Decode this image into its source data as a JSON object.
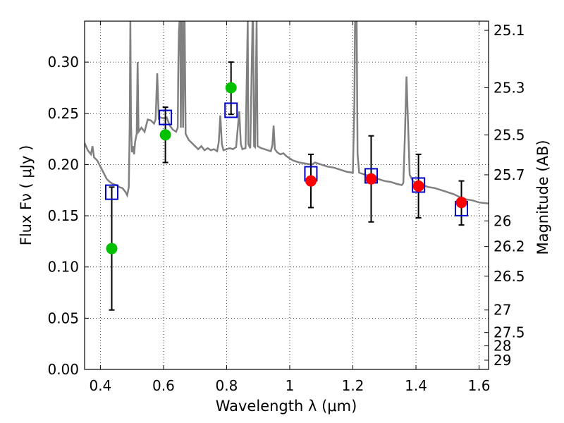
{
  "chart_data": {
    "type": "scatter",
    "title": "",
    "xlabel": "Wavelength  λ (μm)",
    "ylabel": "Flux  Fν  ( μJy )",
    "y2label": "Magnitude (AB)",
    "xlim": [
      0.35,
      1.63
    ],
    "ylim": [
      0.0,
      0.34
    ],
    "xticks": [
      0.4,
      0.6,
      0.8,
      1.0,
      1.2,
      1.4,
      1.6
    ],
    "xtick_labels": [
      "0.4",
      "0.6",
      "0.8",
      "1",
      "1.2",
      "1.4",
      "1.6"
    ],
    "yticks": [
      0.0,
      0.05,
      0.1,
      0.15,
      0.2,
      0.25,
      0.3
    ],
    "ytick_labels": [
      "0.00",
      "0.05",
      "0.10",
      "0.15",
      "0.20",
      "0.25",
      "0.30"
    ],
    "y2ticks": [
      {
        "label": "25.1",
        "flux": 0.331
      },
      {
        "label": "25.3",
        "flux": 0.275
      },
      {
        "label": "25.5",
        "flux": 0.229
      },
      {
        "label": "25.7",
        "flux": 0.19
      },
      {
        "label": "26",
        "flux": 0.145
      },
      {
        "label": "26.2",
        "flux": 0.12
      },
      {
        "label": "26.5",
        "flux": 0.091
      },
      {
        "label": "27",
        "flux": 0.058
      },
      {
        "label": "27.5",
        "flux": 0.036
      },
      {
        "label": "28",
        "flux": 0.023
      },
      {
        "label": "29",
        "flux": 0.009
      }
    ],
    "grid": true,
    "colors": {
      "model": "#808080",
      "observed_optical": "#00c000",
      "observed_nir": "#ff0000",
      "model_photometry": "#0000cc",
      "errorbar": "#000000"
    },
    "series": [
      {
        "kind": "line",
        "points": [
          [
            0.35,
            0.221
          ],
          [
            0.36,
            0.214
          ],
          [
            0.37,
            0.21
          ],
          [
            0.375,
            0.218
          ],
          [
            0.38,
            0.207
          ],
          [
            0.39,
            0.204
          ],
          [
            0.4,
            0.198
          ],
          [
            0.41,
            0.192
          ],
          [
            0.42,
            0.186
          ],
          [
            0.43,
            0.183
          ],
          [
            0.44,
            0.181
          ],
          [
            0.45,
            0.18
          ],
          [
            0.46,
            0.178
          ],
          [
            0.47,
            0.177
          ],
          [
            0.48,
            0.173
          ],
          [
            0.485,
            0.17
          ],
          [
            0.49,
            0.178
          ],
          [
            0.493,
            0.24
          ],
          [
            0.495,
            0.34
          ],
          [
            0.497,
            0.24
          ],
          [
            0.5,
            0.212
          ],
          [
            0.503,
            0.218
          ],
          [
            0.507,
            0.21
          ],
          [
            0.51,
            0.222
          ],
          [
            0.515,
            0.23
          ],
          [
            0.518,
            0.3
          ],
          [
            0.521,
            0.232
          ],
          [
            0.53,
            0.236
          ],
          [
            0.54,
            0.232
          ],
          [
            0.55,
            0.244
          ],
          [
            0.56,
            0.243
          ],
          [
            0.57,
            0.24
          ],
          [
            0.575,
            0.244
          ],
          [
            0.58,
            0.289
          ],
          [
            0.585,
            0.245
          ],
          [
            0.59,
            0.246
          ],
          [
            0.6,
            0.245
          ],
          [
            0.61,
            0.246
          ],
          [
            0.62,
            0.238
          ],
          [
            0.63,
            0.234
          ],
          [
            0.64,
            0.232
          ],
          [
            0.645,
            0.236
          ],
          [
            0.647,
            0.3
          ],
          [
            0.649,
            0.33
          ],
          [
            0.651,
            0.34
          ],
          [
            0.653,
            0.34
          ],
          [
            0.655,
            0.236
          ],
          [
            0.657,
            0.34
          ],
          [
            0.659,
            0.34
          ],
          [
            0.662,
            0.236
          ],
          [
            0.665,
            0.34
          ],
          [
            0.667,
            0.34
          ],
          [
            0.67,
            0.23
          ],
          [
            0.68,
            0.224
          ],
          [
            0.69,
            0.221
          ],
          [
            0.7,
            0.218
          ],
          [
            0.71,
            0.215
          ],
          [
            0.72,
            0.218
          ],
          [
            0.73,
            0.214
          ],
          [
            0.74,
            0.216
          ],
          [
            0.75,
            0.214
          ],
          [
            0.76,
            0.215
          ],
          [
            0.77,
            0.213
          ],
          [
            0.775,
            0.222
          ],
          [
            0.78,
            0.248
          ],
          [
            0.785,
            0.22
          ],
          [
            0.79,
            0.214
          ],
          [
            0.8,
            0.215
          ],
          [
            0.81,
            0.216
          ],
          [
            0.82,
            0.215
          ],
          [
            0.83,
            0.217
          ],
          [
            0.84,
            0.252
          ],
          [
            0.845,
            0.22
          ],
          [
            0.85,
            0.215
          ],
          [
            0.86,
            0.216
          ],
          [
            0.867,
            0.34
          ],
          [
            0.869,
            0.22
          ],
          [
            0.875,
            0.216
          ],
          [
            0.882,
            0.34
          ],
          [
            0.884,
            0.34
          ],
          [
            0.887,
            0.218
          ],
          [
            0.89,
            0.217
          ],
          [
            0.895,
            0.34
          ],
          [
            0.898,
            0.218
          ],
          [
            0.91,
            0.216
          ],
          [
            0.92,
            0.215
          ],
          [
            0.93,
            0.214
          ],
          [
            0.94,
            0.213
          ],
          [
            0.945,
            0.219
          ],
          [
            0.949,
            0.238
          ],
          [
            0.953,
            0.215
          ],
          [
            0.96,
            0.212
          ],
          [
            0.97,
            0.21
          ],
          [
            0.98,
            0.211
          ],
          [
            0.99,
            0.208
          ],
          [
            1.0,
            0.206
          ],
          [
            1.01,
            0.204
          ],
          [
            1.03,
            0.202
          ],
          [
            1.05,
            0.201
          ],
          [
            1.07,
            0.2
          ],
          [
            1.08,
            0.202
          ],
          [
            1.1,
            0.2
          ],
          [
            1.12,
            0.198
          ],
          [
            1.14,
            0.197
          ],
          [
            1.16,
            0.195
          ],
          [
            1.18,
            0.193
          ],
          [
            1.2,
            0.192
          ],
          [
            1.205,
            0.26
          ],
          [
            1.207,
            0.34
          ],
          [
            1.212,
            0.34
          ],
          [
            1.215,
            0.21
          ],
          [
            1.22,
            0.192
          ],
          [
            1.24,
            0.19
          ],
          [
            1.26,
            0.188
          ],
          [
            1.28,
            0.186
          ],
          [
            1.3,
            0.184
          ],
          [
            1.32,
            0.183
          ],
          [
            1.34,
            0.181
          ],
          [
            1.355,
            0.18
          ],
          [
            1.36,
            0.182
          ],
          [
            1.365,
            0.23
          ],
          [
            1.37,
            0.286
          ],
          [
            1.375,
            0.24
          ],
          [
            1.38,
            0.19
          ],
          [
            1.39,
            0.184
          ],
          [
            1.4,
            0.182
          ],
          [
            1.42,
            0.18
          ],
          [
            1.44,
            0.178
          ],
          [
            1.46,
            0.177
          ],
          [
            1.48,
            0.175
          ],
          [
            1.5,
            0.173
          ],
          [
            1.52,
            0.171
          ],
          [
            1.54,
            0.168
          ],
          [
            1.56,
            0.166
          ],
          [
            1.58,
            0.165
          ],
          [
            1.6,
            0.163
          ],
          [
            1.63,
            0.162
          ]
        ]
      },
      {
        "kind": "scatter",
        "points": [
          {
            "x": 0.436,
            "y": 0.118,
            "yerr_low": 0.058,
            "yerr_high": 0.178
          },
          {
            "x": 0.606,
            "y": 0.229,
            "yerr_low": 0.202,
            "yerr_high": 0.256
          },
          {
            "x": 0.814,
            "y": 0.275,
            "yerr_low": 0.249,
            "yerr_high": 0.3
          }
        ]
      },
      {
        "kind": "scatter",
        "points": [
          {
            "x": 1.067,
            "y": 0.184,
            "yerr_low": 0.158,
            "yerr_high": 0.21
          },
          {
            "x": 1.258,
            "y": 0.186,
            "yerr_low": 0.144,
            "yerr_high": 0.228
          },
          {
            "x": 1.408,
            "y": 0.179,
            "yerr_low": 0.148,
            "yerr_high": 0.21
          },
          {
            "x": 1.544,
            "y": 0.163,
            "yerr_low": 0.141,
            "yerr_high": 0.184
          }
        ]
      },
      {
        "kind": "squares",
        "points": [
          {
            "x": 0.436,
            "y": 0.173
          },
          {
            "x": 0.606,
            "y": 0.246
          },
          {
            "x": 0.814,
            "y": 0.253
          },
          {
            "x": 1.067,
            "y": 0.191
          },
          {
            "x": 1.258,
            "y": 0.189
          },
          {
            "x": 1.408,
            "y": 0.18
          },
          {
            "x": 1.544,
            "y": 0.157
          }
        ]
      }
    ]
  }
}
